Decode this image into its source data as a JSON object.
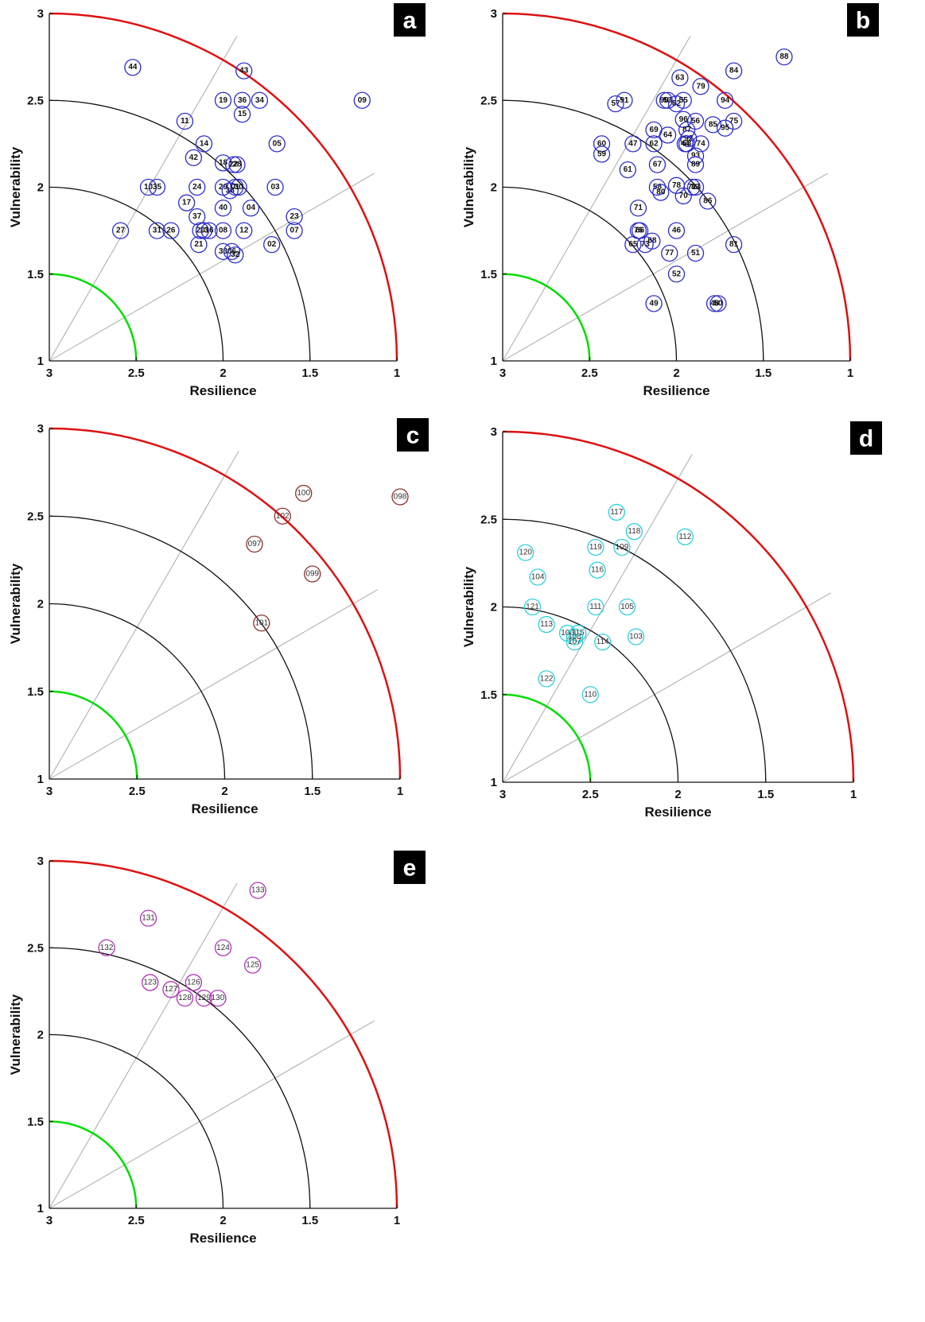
{
  "chart_data": [
    {
      "type": "scatter",
      "panel_label": "a",
      "xlabel": "Resilience",
      "ylabel": "Vulnerability",
      "xlim": [
        3,
        1
      ],
      "ylim": [
        1,
        3
      ],
      "x_ticks": [
        "3",
        "2.5",
        "2",
        "1.5",
        "1"
      ],
      "y_ticks": [
        "1",
        "1.5",
        "2",
        "2.5",
        "3"
      ],
      "marker_color": "#2b2bcc",
      "label_bold": true,
      "points": [
        {
          "label": "44",
          "x": 2.52,
          "y": 2.69
        },
        {
          "label": "43",
          "x": 1.88,
          "y": 2.67
        },
        {
          "label": "09",
          "x": 1.2,
          "y": 2.5
        },
        {
          "label": "19",
          "x": 2.0,
          "y": 2.5
        },
        {
          "label": "36",
          "x": 1.89,
          "y": 2.5
        },
        {
          "label": "34",
          "x": 1.79,
          "y": 2.5
        },
        {
          "label": "15",
          "x": 1.89,
          "y": 2.42
        },
        {
          "label": "11",
          "x": 2.22,
          "y": 2.38
        },
        {
          "label": "14",
          "x": 2.11,
          "y": 2.25
        },
        {
          "label": "05",
          "x": 1.69,
          "y": 2.25
        },
        {
          "label": "42",
          "x": 2.17,
          "y": 2.17
        },
        {
          "label": "18",
          "x": 2.0,
          "y": 2.14
        },
        {
          "label": "22",
          "x": 1.94,
          "y": 2.13
        },
        {
          "label": "28",
          "x": 1.92,
          "y": 2.13
        },
        {
          "label": "10",
          "x": 2.43,
          "y": 2.0
        },
        {
          "label": "35",
          "x": 2.38,
          "y": 2.0
        },
        {
          "label": "24",
          "x": 2.15,
          "y": 2.0
        },
        {
          "label": "29",
          "x": 2.0,
          "y": 2.0
        },
        {
          "label": "38",
          "x": 1.96,
          "y": 1.98
        },
        {
          "label": "01",
          "x": 1.93,
          "y": 2.0
        },
        {
          "label": "30",
          "x": 1.91,
          "y": 2.0
        },
        {
          "label": "03",
          "x": 1.7,
          "y": 2.0
        },
        {
          "label": "17",
          "x": 2.21,
          "y": 1.91
        },
        {
          "label": "40",
          "x": 2.0,
          "y": 1.88
        },
        {
          "label": "04",
          "x": 1.84,
          "y": 1.88
        },
        {
          "label": "37",
          "x": 2.15,
          "y": 1.83
        },
        {
          "label": "23",
          "x": 1.59,
          "y": 1.83
        },
        {
          "label": "27",
          "x": 2.59,
          "y": 1.75
        },
        {
          "label": "31",
          "x": 2.38,
          "y": 1.75
        },
        {
          "label": "26",
          "x": 2.3,
          "y": 1.75
        },
        {
          "label": "20",
          "x": 2.13,
          "y": 1.75
        },
        {
          "label": "13",
          "x": 2.11,
          "y": 1.75
        },
        {
          "label": "16",
          "x": 2.08,
          "y": 1.75
        },
        {
          "label": "08",
          "x": 2.0,
          "y": 1.75
        },
        {
          "label": "12",
          "x": 1.88,
          "y": 1.75
        },
        {
          "label": "07",
          "x": 1.59,
          "y": 1.75
        },
        {
          "label": "21",
          "x": 2.14,
          "y": 1.67
        },
        {
          "label": "02",
          "x": 1.72,
          "y": 1.67
        },
        {
          "label": "33",
          "x": 2.0,
          "y": 1.63
        },
        {
          "label": "06",
          "x": 1.95,
          "y": 1.63
        },
        {
          "label": "32",
          "x": 1.93,
          "y": 1.61
        }
      ]
    },
    {
      "type": "scatter",
      "panel_label": "b",
      "xlabel": "Resilience",
      "ylabel": "Vulnerability",
      "xlim": [
        3,
        1
      ],
      "ylim": [
        1,
        3
      ],
      "x_ticks": [
        "3",
        "2.5",
        "2",
        "1.5",
        "1"
      ],
      "y_ticks": [
        "1",
        "1.5",
        "2",
        "2.5",
        "3"
      ],
      "marker_color": "#2b2bcc",
      "label_bold": true,
      "points": [
        {
          "label": "88",
          "x": 1.38,
          "y": 2.75
        },
        {
          "label": "84",
          "x": 1.67,
          "y": 2.67
        },
        {
          "label": "63",
          "x": 1.98,
          "y": 2.63
        },
        {
          "label": "79",
          "x": 1.86,
          "y": 2.58
        },
        {
          "label": "57",
          "x": 2.35,
          "y": 2.48
        },
        {
          "label": "91",
          "x": 2.3,
          "y": 2.5
        },
        {
          "label": "90",
          "x": 2.07,
          "y": 2.5
        },
        {
          "label": "53",
          "x": 2.05,
          "y": 2.5
        },
        {
          "label": "82",
          "x": 2.0,
          "y": 2.48
        },
        {
          "label": "55",
          "x": 1.96,
          "y": 2.5
        },
        {
          "label": "94",
          "x": 1.72,
          "y": 2.5
        },
        {
          "label": "96",
          "x": 1.96,
          "y": 2.39
        },
        {
          "label": "56",
          "x": 1.89,
          "y": 2.38
        },
        {
          "label": "75",
          "x": 1.67,
          "y": 2.38
        },
        {
          "label": "85",
          "x": 1.79,
          "y": 2.36
        },
        {
          "label": "95",
          "x": 1.72,
          "y": 2.34
        },
        {
          "label": "69",
          "x": 2.13,
          "y": 2.33
        },
        {
          "label": "87",
          "x": 1.94,
          "y": 2.33
        },
        {
          "label": "64",
          "x": 2.05,
          "y": 2.3
        },
        {
          "label": "92",
          "x": 1.93,
          "y": 2.28
        },
        {
          "label": "60",
          "x": 2.43,
          "y": 2.25
        },
        {
          "label": "47",
          "x": 2.25,
          "y": 2.25
        },
        {
          "label": "62",
          "x": 2.13,
          "y": 2.25
        },
        {
          "label": "44",
          "x": 1.95,
          "y": 2.25
        },
        {
          "label": "58",
          "x": 1.94,
          "y": 2.25
        },
        {
          "label": "74",
          "x": 1.86,
          "y": 2.25
        },
        {
          "label": "59",
          "x": 2.43,
          "y": 2.19
        },
        {
          "label": "93",
          "x": 1.89,
          "y": 2.18
        },
        {
          "label": "67",
          "x": 2.11,
          "y": 2.13
        },
        {
          "label": "89",
          "x": 1.89,
          "y": 2.13
        },
        {
          "label": "61",
          "x": 2.28,
          "y": 2.1
        },
        {
          "label": "58",
          "x": 2.11,
          "y": 2.0
        },
        {
          "label": "78",
          "x": 2.0,
          "y": 2.01
        },
        {
          "label": "72",
          "x": 1.91,
          "y": 2.0
        },
        {
          "label": "83",
          "x": 1.89,
          "y": 2.0
        },
        {
          "label": "80",
          "x": 2.09,
          "y": 1.97
        },
        {
          "label": "70",
          "x": 1.96,
          "y": 1.95
        },
        {
          "label": "86",
          "x": 1.82,
          "y": 1.92
        },
        {
          "label": "71",
          "x": 2.22,
          "y": 1.88
        },
        {
          "label": "76",
          "x": 2.22,
          "y": 1.75
        },
        {
          "label": "66",
          "x": 2.21,
          "y": 1.75
        },
        {
          "label": "46",
          "x": 2.0,
          "y": 1.75
        },
        {
          "label": "68",
          "x": 2.14,
          "y": 1.69
        },
        {
          "label": "65",
          "x": 2.25,
          "y": 1.67
        },
        {
          "label": "73",
          "x": 2.18,
          "y": 1.67
        },
        {
          "label": "81",
          "x": 1.67,
          "y": 1.67
        },
        {
          "label": "77",
          "x": 2.04,
          "y": 1.62
        },
        {
          "label": "51",
          "x": 1.89,
          "y": 1.62
        },
        {
          "label": "52",
          "x": 2.0,
          "y": 1.5
        },
        {
          "label": "49",
          "x": 2.13,
          "y": 1.33
        },
        {
          "label": "48",
          "x": 1.78,
          "y": 1.33
        },
        {
          "label": "50",
          "x": 1.76,
          "y": 1.33
        }
      ]
    },
    {
      "type": "scatter",
      "panel_label": "c",
      "xlabel": "Resilience",
      "ylabel": "Vulnerability",
      "xlim": [
        3,
        1
      ],
      "ylim": [
        1,
        3
      ],
      "x_ticks": [
        "3",
        "2.5",
        "2",
        "1.5",
        "1"
      ],
      "y_ticks": [
        "1",
        "1.5",
        "2",
        "2.5",
        "3"
      ],
      "marker_color": "#8b2f2a",
      "label_bold": false,
      "points": [
        {
          "label": "100",
          "x": 1.55,
          "y": 2.63
        },
        {
          "label": "098",
          "x": 1.0,
          "y": 2.61
        },
        {
          "label": "102",
          "x": 1.67,
          "y": 2.5
        },
        {
          "label": "097",
          "x": 1.83,
          "y": 2.34
        },
        {
          "label": "099",
          "x": 1.5,
          "y": 2.17
        },
        {
          "label": "101",
          "x": 1.79,
          "y": 1.89
        }
      ]
    },
    {
      "type": "scatter",
      "panel_label": "d",
      "xlabel": "Resilience",
      "ylabel": "Vulnerability",
      "xlim": [
        3,
        1
      ],
      "ylim": [
        1,
        3
      ],
      "x_ticks": [
        "3",
        "2.5",
        "2",
        "1.5",
        "1"
      ],
      "y_ticks": [
        "1",
        "1.5",
        "2",
        "2.5",
        "3"
      ],
      "marker_color": "#2bd0dc",
      "label_bold": false,
      "points": [
        {
          "label": "117",
          "x": 2.35,
          "y": 2.54
        },
        {
          "label": "118",
          "x": 2.25,
          "y": 2.43
        },
        {
          "label": "112",
          "x": 1.96,
          "y": 2.4
        },
        {
          "label": "119",
          "x": 2.47,
          "y": 2.34
        },
        {
          "label": "109",
          "x": 2.32,
          "y": 2.34
        },
        {
          "label": "120",
          "x": 2.87,
          "y": 2.31
        },
        {
          "label": "116",
          "x": 2.46,
          "y": 2.21
        },
        {
          "label": "104",
          "x": 2.8,
          "y": 2.17
        },
        {
          "label": "121",
          "x": 2.83,
          "y": 2.0
        },
        {
          "label": "111",
          "x": 2.47,
          "y": 2.0
        },
        {
          "label": "105",
          "x": 2.29,
          "y": 2.0
        },
        {
          "label": "113",
          "x": 2.75,
          "y": 1.9
        },
        {
          "label": "106",
          "x": 2.63,
          "y": 1.85
        },
        {
          "label": "115",
          "x": 2.57,
          "y": 1.85
        },
        {
          "label": "108",
          "x": 2.59,
          "y": 1.83
        },
        {
          "label": "107",
          "x": 2.59,
          "y": 1.8
        },
        {
          "label": "114",
          "x": 2.43,
          "y": 1.8
        },
        {
          "label": "103",
          "x": 2.24,
          "y": 1.83
        },
        {
          "label": "122",
          "x": 2.75,
          "y": 1.59
        },
        {
          "label": "110",
          "x": 2.5,
          "y": 1.5
        }
      ]
    },
    {
      "type": "scatter",
      "panel_label": "e",
      "xlabel": "Resilience",
      "ylabel": "Vulnerability",
      "xlim": [
        3,
        1
      ],
      "ylim": [
        1,
        3
      ],
      "x_ticks": [
        "3",
        "2.5",
        "2",
        "1.5",
        "1"
      ],
      "y_ticks": [
        "1",
        "1.5",
        "2",
        "2.5",
        "3"
      ],
      "marker_color": "#b030b8",
      "label_bold": false,
      "points": [
        {
          "label": "133",
          "x": 1.8,
          "y": 2.83
        },
        {
          "label": "131",
          "x": 2.43,
          "y": 2.67
        },
        {
          "label": "132",
          "x": 2.67,
          "y": 2.5
        },
        {
          "label": "124",
          "x": 2.0,
          "y": 2.5
        },
        {
          "label": "125",
          "x": 1.83,
          "y": 2.4
        },
        {
          "label": "123",
          "x": 2.42,
          "y": 2.3
        },
        {
          "label": "126",
          "x": 2.17,
          "y": 2.3
        },
        {
          "label": "127",
          "x": 2.3,
          "y": 2.26
        },
        {
          "label": "128",
          "x": 2.22,
          "y": 2.21
        },
        {
          "label": "129",
          "x": 2.11,
          "y": 2.21
        },
        {
          "label": "130",
          "x": 2.03,
          "y": 2.21
        }
      ]
    }
  ]
}
